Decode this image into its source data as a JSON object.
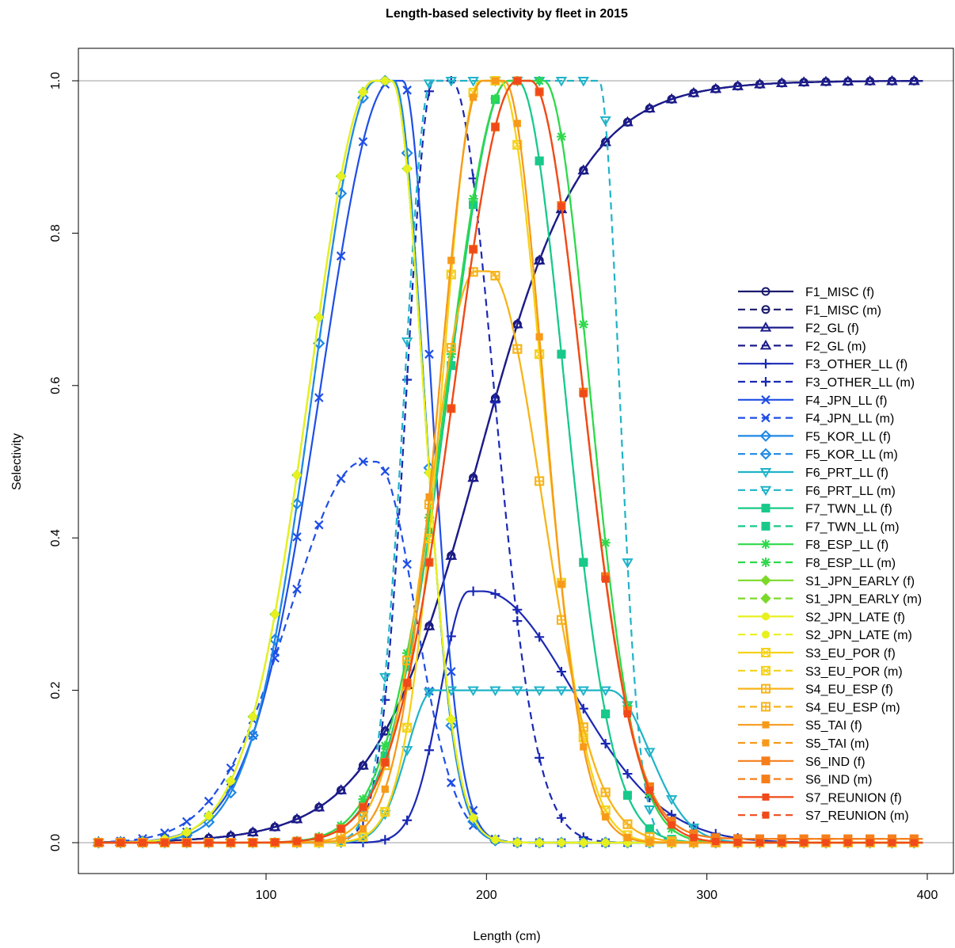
{
  "chart_data": {
    "type": "line",
    "title": "Length-based selectivity by fleet in 2015",
    "xlabel": "Length (cm)",
    "ylabel": "Selectivity",
    "xlim": [
      10,
      410
    ],
    "ylim": [
      -0.04,
      1.08
    ],
    "xticks": [
      100,
      200,
      300,
      400
    ],
    "xtick_labels": [
      "100",
      "200",
      "300",
      "400"
    ],
    "yticks": [
      0.0,
      0.2,
      0.4,
      0.6,
      0.8,
      1.0
    ],
    "ytick_labels": [
      "0.0",
      "0.2",
      "0.4",
      "0.6",
      "0.8",
      "1.0"
    ],
    "reference_lines_y": [
      0,
      1
    ],
    "legend_position": "right",
    "x_range": [
      24,
      398
    ],
    "series": [
      {
        "name": "F1_MISC (f)",
        "color": "#1a1a6e",
        "dash": false,
        "marker": "circle",
        "shape": "logistic",
        "a": 1.0,
        "p": [
          196,
          0.042
        ]
      },
      {
        "name": "F1_MISC (m)",
        "color": "#1a1a6e",
        "dash": true,
        "marker": "circle",
        "shape": "logistic",
        "a": 1.0,
        "p": [
          196,
          0.042
        ]
      },
      {
        "name": "F2_GL (f)",
        "color": "#1c1c8c",
        "dash": false,
        "marker": "triangle",
        "shape": "logistic",
        "a": 1.0,
        "p": [
          196,
          0.042
        ]
      },
      {
        "name": "F2_GL (m)",
        "color": "#1c1c8c",
        "dash": true,
        "marker": "triangle",
        "shape": "logistic",
        "a": 1.0,
        "p": [
          196,
          0.042
        ]
      },
      {
        "name": "F3_OTHER_LL (f)",
        "color": "#1a28b4",
        "dash": false,
        "marker": "plus",
        "shape": "dn",
        "a": 0.33,
        "p": [
          192,
          198,
          18,
          58,
          0,
          0
        ]
      },
      {
        "name": "F3_OTHER_LL (m)",
        "color": "#1a28b4",
        "dash": true,
        "marker": "plus",
        "shape": "dn",
        "a": 1.0,
        "p": [
          176,
          184,
          17,
          27,
          0,
          0
        ]
      },
      {
        "name": "F4_JPN_LL (f)",
        "color": "#1f4ee6",
        "dash": false,
        "marker": "x",
        "shape": "dn",
        "a": 1.0,
        "p": [
          157,
          162,
          45,
          18,
          0,
          0
        ]
      },
      {
        "name": "F4_JPN_LL (m)",
        "color": "#1f4ee6",
        "dash": true,
        "marker": "x",
        "shape": "dn",
        "a": 0.5,
        "p": [
          144,
          150,
          47,
          25,
          0,
          0
        ]
      },
      {
        "name": "F5_KOR_LL (f)",
        "color": "#1e88e5",
        "dash": false,
        "marker": "diamond",
        "shape": "dn",
        "a": 1.0,
        "p": [
          150,
          158,
          40,
          19,
          0,
          0
        ]
      },
      {
        "name": "F5_KOR_LL (m)",
        "color": "#1e88e5",
        "dash": true,
        "marker": "diamond",
        "shape": "dn",
        "a": 1.0,
        "p": [
          150,
          158,
          40,
          19,
          0,
          0
        ]
      },
      {
        "name": "F6_PRT_LL (f)",
        "color": "#1fb3c8",
        "dash": false,
        "marker": "triangle-down",
        "shape": "dn",
        "a": 0.2,
        "p": [
          176,
          256,
          17,
          25,
          0,
          0
        ]
      },
      {
        "name": "F6_PRT_LL (m)",
        "color": "#1fb3c8",
        "dash": true,
        "marker": "triangle-down",
        "shape": "dn",
        "a": 1.0,
        "p": [
          175,
          251,
          17,
          13,
          0,
          0
        ]
      },
      {
        "name": "F7_TWN_LL (f)",
        "color": "#19c98a",
        "dash": false,
        "marker": "square",
        "shape": "dn",
        "a": 1.0,
        "p": [
          210,
          214,
          38,
          30,
          0,
          0
        ]
      },
      {
        "name": "F7_TWN_LL (m)",
        "color": "#19c98a",
        "dash": true,
        "marker": "square",
        "shape": "dn",
        "a": 1.0,
        "p": [
          210,
          214,
          38,
          30,
          0,
          0
        ]
      },
      {
        "name": "F8_ESP_LL (f)",
        "color": "#2ed94a",
        "dash": false,
        "marker": "asterisk",
        "shape": "dn",
        "a": 1.0,
        "p": [
          210,
          226,
          39,
          29,
          0,
          0
        ]
      },
      {
        "name": "F8_ESP_LL (m)",
        "color": "#2ed94a",
        "dash": true,
        "marker": "asterisk",
        "shape": "dn",
        "a": 1.0,
        "p": [
          210,
          226,
          39,
          29,
          0,
          0
        ]
      },
      {
        "name": "S1_JPN_EARLY (f)",
        "color": "#7cd92a",
        "dash": false,
        "marker": "diamond-filled",
        "shape": "dn",
        "a": 1.0,
        "p": [
          149,
          157,
          41,
          20,
          0,
          0
        ]
      },
      {
        "name": "S1_JPN_EARLY (m)",
        "color": "#7cd92a",
        "dash": true,
        "marker": "diamond-filled",
        "shape": "dn",
        "a": 1.0,
        "p": [
          149,
          157,
          41,
          20,
          0,
          0
        ]
      },
      {
        "name": "S2_JPN_LATE (f)",
        "color": "#e8f020",
        "dash": false,
        "marker": "dot",
        "shape": "dn",
        "a": 1.0,
        "p": [
          149,
          157,
          41,
          20,
          0,
          0
        ]
      },
      {
        "name": "S2_JPN_LATE (m)",
        "color": "#e8f020",
        "dash": true,
        "marker": "dot",
        "shape": "dn",
        "a": 1.0,
        "p": [
          149,
          157,
          41,
          20,
          0,
          0
        ]
      },
      {
        "name": "S3_EU_POR (f)",
        "color": "#f5d21a",
        "dash": false,
        "marker": "square-x",
        "shape": "dn",
        "a": 1.0,
        "p": [
          197,
          206,
          24,
          27,
          0,
          0
        ]
      },
      {
        "name": "S3_EU_POR (m)",
        "color": "#f5d21a",
        "dash": true,
        "marker": "square-x",
        "shape": "dn",
        "a": 1.0,
        "p": [
          197,
          206,
          24,
          27,
          0,
          0
        ]
      },
      {
        "name": "S4_EU_ESP (f)",
        "color": "#f7b41a",
        "dash": false,
        "marker": "square-plus",
        "shape": "dn",
        "a": 0.75,
        "p": [
          195,
          201,
          29,
          34,
          0,
          0
        ]
      },
      {
        "name": "S4_EU_ESP (m)",
        "color": "#f7b41a",
        "dash": true,
        "marker": "square-plus",
        "shape": "dn",
        "a": 0.75,
        "p": [
          195,
          201,
          29,
          34,
          0,
          0
        ]
      },
      {
        "name": "S5_TAI (f)",
        "color": "#f79a1a",
        "dash": false,
        "marker": "square-small",
        "shape": "dn",
        "a": 1.0,
        "p": [
          198,
          208,
          27,
          25,
          0,
          0
        ]
      },
      {
        "name": "S5_TAI (m)",
        "color": "#f79a1a",
        "dash": true,
        "marker": "square-small",
        "shape": "dn",
        "a": 1.0,
        "p": [
          198,
          208,
          27,
          25,
          0,
          0
        ]
      },
      {
        "name": "S6_IND (f)",
        "color": "#f57e1a",
        "dash": false,
        "marker": "square",
        "shape": "dn",
        "a": 1.0,
        "p": [
          214,
          220,
          40,
          33,
          0.0,
          0.005
        ]
      },
      {
        "name": "S6_IND (m)",
        "color": "#f57e1a",
        "dash": true,
        "marker": "square",
        "shape": "dn",
        "a": 1.0,
        "p": [
          214,
          220,
          40,
          33,
          0.0,
          0.005
        ]
      },
      {
        "name": "S7_REUNION (f)",
        "color": "#f04a1a",
        "dash": false,
        "marker": "square-small",
        "shape": "dn",
        "a": 1.0,
        "p": [
          214,
          220,
          40,
          33,
          0,
          0
        ]
      },
      {
        "name": "S7_REUNION (m)",
        "color": "#f04a1a",
        "dash": true,
        "marker": "square-small",
        "shape": "dn",
        "a": 1.0,
        "p": [
          214,
          220,
          40,
          33,
          0,
          0
        ]
      }
    ]
  }
}
